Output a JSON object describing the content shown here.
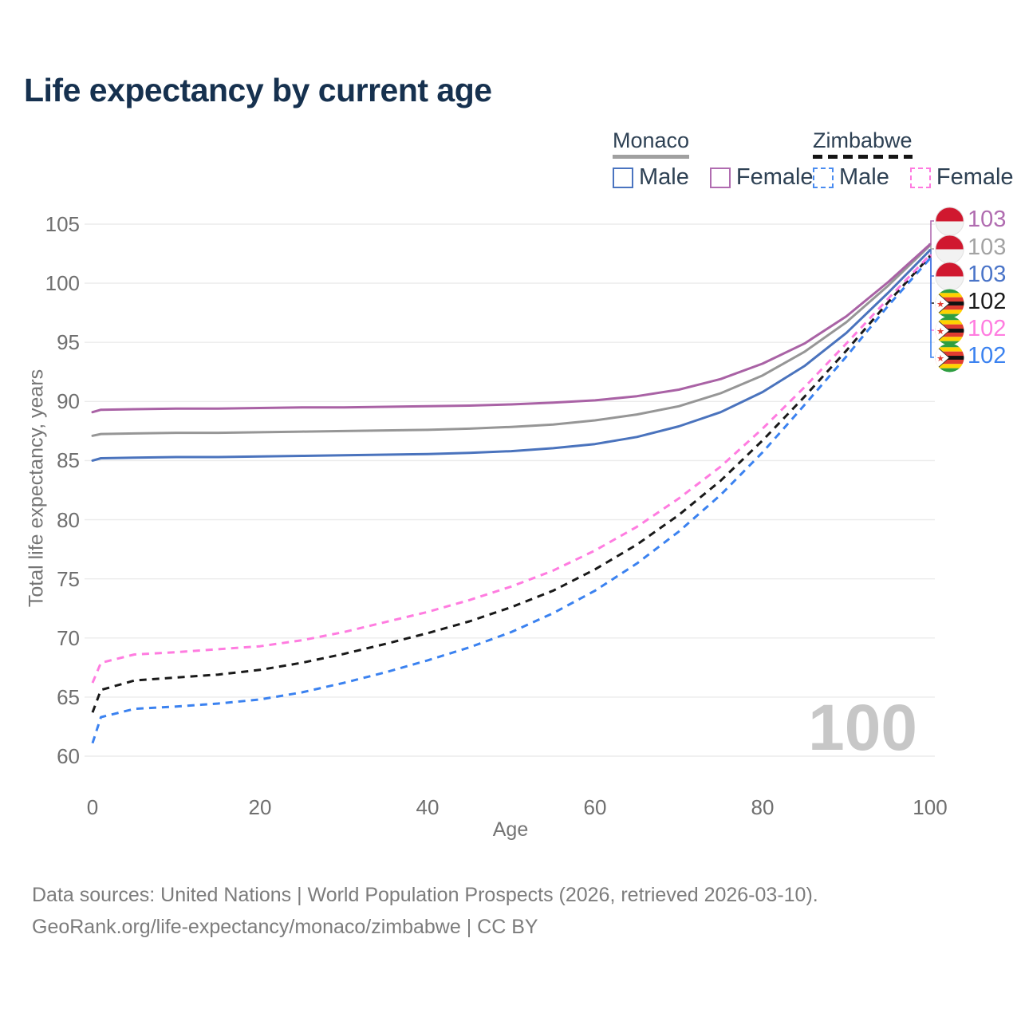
{
  "title": "Life expectancy by current age",
  "legend": {
    "monaco": {
      "name": "Monaco",
      "line_style": "solid",
      "male_label": "Male",
      "female_label": "Female",
      "male_color": "#4a74c0",
      "female_color": "#b06cb0"
    },
    "zimbabwe": {
      "name": "Zimbabwe",
      "line_style": "dashed",
      "male_label": "Male",
      "female_label": "Female",
      "male_color": "#4a8cf0",
      "female_color": "#ff7ae0"
    }
  },
  "watermark": "100",
  "footer": {
    "line1": "Data sources: United Nations | World Population Prospects (2026, retrieved 2026-03-10).",
    "line2": "GeoRank.org/life-expectancy/monaco/zimbabwe | CC BY"
  },
  "end_labels": [
    {
      "series": "monaco-female",
      "flag": "monaco-flag-icon",
      "value": "103",
      "color": "#b06cb0"
    },
    {
      "series": "monaco-all",
      "flag": "monaco-flag-icon",
      "value": "103",
      "color": "#a3a3a3"
    },
    {
      "series": "monaco-male",
      "flag": "monaco-flag-icon",
      "value": "103",
      "color": "#4a74c8"
    },
    {
      "series": "zimbabwe-all",
      "flag": "zimbabwe-flag-icon",
      "value": "102",
      "color": "#1a1a1a"
    },
    {
      "series": "zimbabwe-female",
      "flag": "zimbabwe-flag-icon",
      "value": "102",
      "color": "#ff7ce0"
    },
    {
      "series": "zimbabwe-male",
      "flag": "zimbabwe-flag-icon",
      "value": "102",
      "color": "#3b82f0"
    }
  ],
  "chart_data": {
    "type": "line",
    "title": "Life expectancy by current age",
    "xlabel": "Age",
    "ylabel": "Total life expectancy, years",
    "xlim": [
      0,
      100
    ],
    "ylim": [
      60,
      105
    ],
    "x_ticks": [
      0,
      20,
      40,
      60,
      80,
      100
    ],
    "y_ticks": [
      60,
      65,
      70,
      75,
      80,
      85,
      90,
      95,
      100,
      105
    ],
    "grid": "horizontal",
    "legend_position": "top-right",
    "ages": [
      0,
      1,
      5,
      10,
      15,
      20,
      25,
      30,
      35,
      40,
      45,
      50,
      55,
      60,
      65,
      70,
      75,
      80,
      85,
      90,
      95,
      100
    ],
    "series": [
      {
        "key": "zimbabwe-male",
        "name": "Zimbabwe Male",
        "country": "Zimbabwe",
        "sex": "Male",
        "color": "#3b82f0",
        "dash": "dashed",
        "values": [
          61.1,
          63.3,
          64.0,
          64.2,
          64.45,
          64.8,
          65.4,
          66.2,
          67.1,
          68.1,
          69.2,
          70.5,
          72.1,
          74.0,
          76.3,
          79.0,
          82.1,
          85.7,
          89.7,
          93.8,
          98.1,
          102.1
        ]
      },
      {
        "key": "zimbabwe-all",
        "name": "Zimbabwe Both sexes",
        "country": "Zimbabwe",
        "sex": "Both",
        "color": "#191919",
        "dash": "dashed",
        "values": [
          63.7,
          65.6,
          66.4,
          66.65,
          66.9,
          67.3,
          67.9,
          68.65,
          69.5,
          70.4,
          71.4,
          72.6,
          74.0,
          75.8,
          77.9,
          80.4,
          83.3,
          86.7,
          90.4,
          94.3,
          98.4,
          102.3
        ]
      },
      {
        "key": "zimbabwe-female",
        "name": "Zimbabwe Female",
        "country": "Zimbabwe",
        "sex": "Female",
        "color": "#ff7ce0",
        "dash": "dashed",
        "values": [
          66.2,
          67.9,
          68.6,
          68.8,
          69.05,
          69.3,
          69.8,
          70.5,
          71.35,
          72.2,
          73.2,
          74.35,
          75.7,
          77.4,
          79.4,
          81.8,
          84.5,
          87.7,
          91.2,
          94.9,
          98.7,
          102.4
        ]
      },
      {
        "key": "monaco-male",
        "name": "Monaco Male",
        "country": "Monaco",
        "sex": "Male",
        "color": "#4a73bd",
        "dash": "solid",
        "values": [
          85.0,
          85.2,
          85.25,
          85.3,
          85.3,
          85.35,
          85.4,
          85.45,
          85.5,
          85.55,
          85.65,
          85.8,
          86.05,
          86.4,
          87.0,
          87.9,
          89.1,
          90.8,
          93.0,
          95.8,
          99.2,
          102.8
        ]
      },
      {
        "key": "monaco-all",
        "name": "Monaco Both sexes",
        "country": "Monaco",
        "sex": "Both",
        "color": "#969696",
        "dash": "solid",
        "values": [
          87.1,
          87.25,
          87.3,
          87.35,
          87.35,
          87.4,
          87.45,
          87.5,
          87.55,
          87.6,
          87.7,
          87.85,
          88.05,
          88.4,
          88.9,
          89.6,
          90.7,
          92.2,
          94.2,
          96.7,
          99.8,
          103.2
        ]
      },
      {
        "key": "monaco-female",
        "name": "Monaco Female",
        "country": "Monaco",
        "sex": "Female",
        "color": "#a962a5",
        "dash": "solid",
        "values": [
          89.1,
          89.3,
          89.35,
          89.4,
          89.4,
          89.45,
          89.5,
          89.5,
          89.55,
          89.6,
          89.65,
          89.75,
          89.9,
          90.1,
          90.45,
          91.0,
          91.9,
          93.2,
          94.9,
          97.2,
          100.1,
          103.3
        ]
      }
    ]
  }
}
